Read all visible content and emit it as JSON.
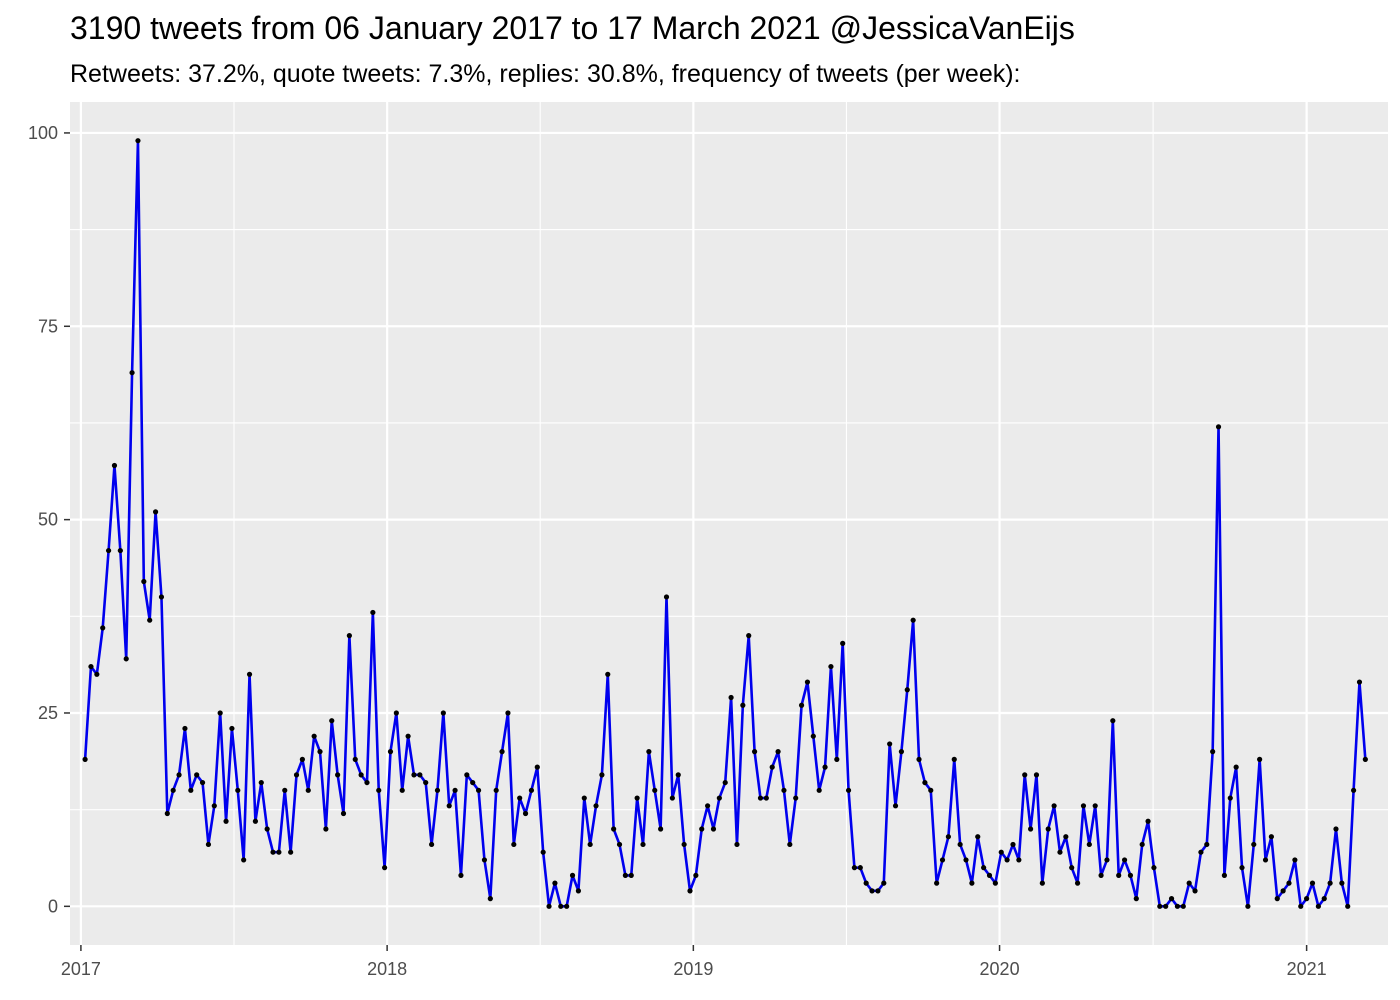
{
  "chart_data": {
    "type": "line",
    "title": "3190 tweets from 06 January 2017 to 17 March 2021 @JessicaVanEijs",
    "subtitle": "Retweets: 37.2%, quote tweets: 7.3%, replies: 30.8%, frequency of tweets (per week):",
    "xlabel": "",
    "ylabel": "",
    "x_axis": "date",
    "x_start": "2017-01-06",
    "x_interval_days": 7,
    "xlim": [
      "2016-12-19",
      "2021-04-08"
    ],
    "ylim": [
      -5,
      104
    ],
    "x_ticks": [
      {
        "date": "2017-01-01",
        "label": "2017"
      },
      {
        "date": "2018-01-01",
        "label": "2018"
      },
      {
        "date": "2019-01-01",
        "label": "2019"
      },
      {
        "date": "2020-01-01",
        "label": "2020"
      },
      {
        "date": "2021-01-01",
        "label": "2021"
      }
    ],
    "y_ticks": [
      0,
      25,
      50,
      75,
      100
    ],
    "grid": true,
    "line_color": "#0000ee",
    "point_color": "#000000",
    "panel_background": "#ebebeb",
    "series": [
      {
        "values": [
          19,
          31,
          30,
          36,
          46,
          57,
          46,
          32,
          69,
          99,
          42,
          37,
          51,
          40,
          12,
          15,
          17,
          23,
          15,
          17,
          16,
          8,
          13,
          25,
          11,
          23,
          15,
          6,
          30,
          11,
          16,
          10,
          7,
          7,
          15,
          7,
          17,
          19,
          15,
          22,
          20,
          10,
          24,
          17,
          12,
          35,
          19,
          17,
          16,
          38,
          15,
          5,
          20,
          25,
          15,
          22,
          17,
          17,
          16,
          8,
          15,
          25,
          13,
          15,
          4,
          17,
          16,
          15,
          6,
          1,
          15,
          20,
          25,
          8,
          14,
          12,
          15,
          18,
          7,
          0,
          3,
          0,
          0,
          4,
          2,
          14,
          8,
          13,
          17,
          30,
          10,
          8,
          4,
          4,
          14,
          8,
          20,
          15,
          10,
          40,
          14,
          17,
          8,
          2,
          4,
          10,
          13,
          10,
          14,
          16,
          27,
          8,
          26,
          35,
          20,
          14,
          14,
          18,
          20,
          15,
          8,
          14,
          26,
          29,
          22,
          15,
          18,
          31,
          19,
          34,
          15,
          5,
          5,
          3,
          2,
          2,
          3,
          21,
          13,
          20,
          28,
          37,
          19,
          16,
          15,
          3,
          6,
          9,
          19,
          8,
          6,
          3,
          9,
          5,
          4,
          3,
          7,
          6,
          8,
          6,
          17,
          10,
          17,
          3,
          10,
          13,
          7,
          9,
          5,
          3,
          13,
          8,
          13,
          4,
          6,
          24,
          4,
          6,
          4,
          1,
          8,
          11,
          5,
          0,
          0,
          1,
          0,
          0,
          3,
          2,
          7,
          8,
          20,
          62,
          4,
          14,
          18,
          5,
          0,
          8,
          19,
          6,
          9,
          1,
          2,
          3,
          6,
          0,
          1,
          3,
          0,
          1,
          3,
          10,
          3,
          0,
          15,
          29,
          19
        ]
      }
    ]
  }
}
